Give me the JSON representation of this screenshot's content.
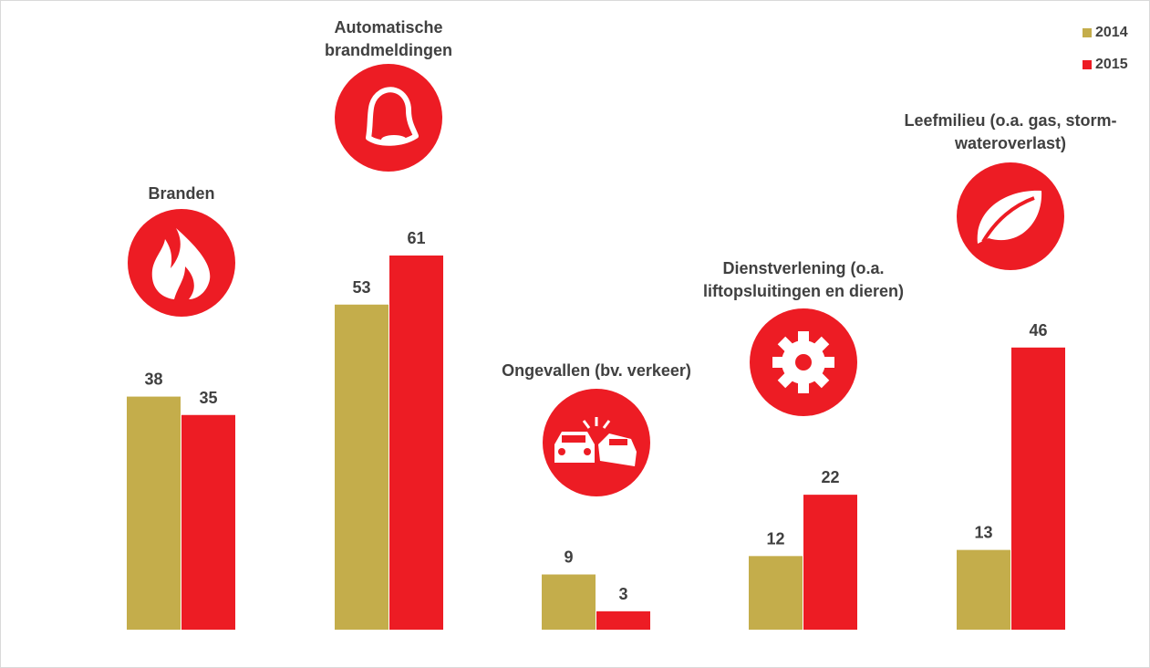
{
  "chart_data": {
    "type": "bar",
    "categories": [
      "Branden",
      "Automatische\nbrandmeldingen",
      "Ongevallen (bv. verkeer)",
      "Dienstverlening (o.a.\nliftopsluitingen en dieren)",
      "Leefmilieu (o.a. gas, storm-\nwateroverlast)"
    ],
    "series": [
      {
        "name": "2014",
        "color": "#c4ad4b",
        "values": [
          38,
          53,
          9,
          12,
          13
        ]
      },
      {
        "name": "2015",
        "color": "#ed1c24",
        "values": [
          35,
          61,
          3,
          22,
          46
        ]
      }
    ],
    "icons": [
      "fire-icon",
      "bell-icon",
      "car-crash-icon",
      "gear-icon",
      "leaf-icon"
    ],
    "legend_position": "top-right",
    "grid": false,
    "ylim": [
      0,
      61
    ]
  }
}
